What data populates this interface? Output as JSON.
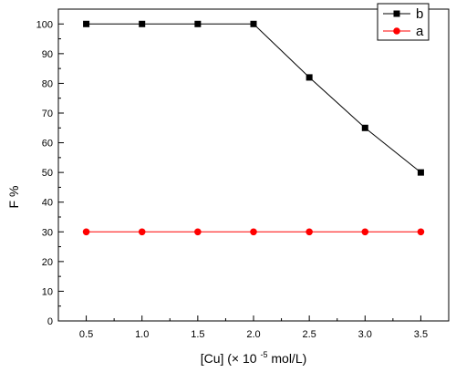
{
  "chart_data": {
    "type": "line",
    "title": "",
    "xlabel": {
      "prefix": "[Cu] (× 10",
      "exponent": "-5",
      "suffix": "mol/L)"
    },
    "ylabel": "F %",
    "x": [
      0.5,
      1.0,
      1.5,
      2.0,
      2.5,
      3.0,
      3.5
    ],
    "x_tick_labels": [
      "0.5",
      "1.0",
      "1.5",
      "2.0",
      "2.5",
      "3.0",
      "3.5"
    ],
    "y_tick_labels": [
      "0",
      "10",
      "20",
      "30",
      "40",
      "50",
      "60",
      "70",
      "80",
      "90",
      "100"
    ],
    "xlim": [
      0.25,
      3.75
    ],
    "ylim": [
      0,
      105
    ],
    "grid": false,
    "legend_position": "top-right",
    "series": [
      {
        "name": "b",
        "marker": "square",
        "color": "#000000",
        "values": [
          100,
          100,
          100,
          100,
          82,
          65,
          50
        ]
      },
      {
        "name": "a",
        "marker": "circle",
        "color": "#ff0000",
        "values": [
          30,
          30,
          30,
          30,
          30,
          30,
          30
        ]
      }
    ]
  }
}
